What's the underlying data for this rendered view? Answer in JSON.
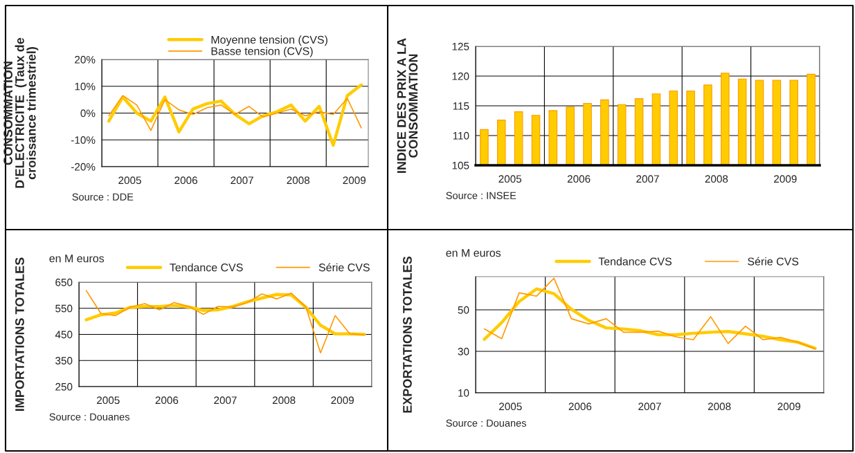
{
  "chart_data": [
    {
      "type": "line",
      "ylabel": "CONSOMMATION\nD'ELECTRICITE  (Taux de\ncroissance trimestriel)",
      "annotations": [
        "Source : DDE"
      ],
      "x": [
        2005.125,
        2005.375,
        2005.625,
        2005.875,
        2006.125,
        2006.375,
        2006.625,
        2006.875,
        2007.125,
        2007.375,
        2007.625,
        2007.875,
        2008.125,
        2008.375,
        2008.625,
        2008.875,
        2009.125,
        2009.375,
        2009.625
      ],
      "series": [
        {
          "name": "Moyenne tension (CVS)",
          "color": "#ffcc00",
          "values": [
            -3,
            6,
            0,
            -3,
            6,
            -7,
            1.5,
            3.5,
            4.5,
            -0.5,
            -4,
            -1,
            0.5,
            3,
            -3,
            2.5,
            -12,
            6.5,
            10.5
          ]
        },
        {
          "name": "Basse tension (CVS)",
          "color": "#ff9900",
          "values": [
            -1,
            6.5,
            3,
            -6.5,
            5,
            1.2,
            -0.5,
            2,
            3,
            -0.5,
            2.5,
            -1.5,
            0,
            1.5,
            -1,
            0.5,
            -0.5,
            5.5,
            -5.5
          ]
        }
      ],
      "xlim": [
        2005,
        2009.75
      ],
      "xticks": [
        {
          "value": 2005,
          "label": null
        },
        {
          "value": 2005.5,
          "label": "2005"
        },
        {
          "value": 2006,
          "label": null
        },
        {
          "value": 2006.5,
          "label": "2006"
        },
        {
          "value": 2007,
          "label": null
        },
        {
          "value": 2007.5,
          "label": "2007"
        },
        {
          "value": 2008,
          "label": null
        },
        {
          "value": 2008.5,
          "label": "2008"
        },
        {
          "value": 2009,
          "label": null
        },
        {
          "value": 2009.5,
          "label": "2009"
        }
      ],
      "ylim": [
        -20,
        20
      ],
      "yticks": [
        {
          "value": -20,
          "label": "-20%"
        },
        {
          "value": -10,
          "label": "-10%"
        },
        {
          "value": 0,
          "label": "0%"
        },
        {
          "value": 10,
          "label": "10%"
        },
        {
          "value": 20,
          "label": "20%"
        }
      ],
      "grid": true,
      "legend": "top"
    },
    {
      "type": "bar",
      "ylabel": "INDICE DES PRIX A LA\nCONSOMMATION",
      "annotations": [
        "Source : INSEE"
      ],
      "x": [
        2005.125,
        2005.375,
        2005.625,
        2005.875,
        2006.125,
        2006.375,
        2006.625,
        2006.875,
        2007.125,
        2007.375,
        2007.625,
        2007.875,
        2008.125,
        2008.375,
        2008.625,
        2008.875,
        2009.125,
        2009.375,
        2009.625,
        2009.875
      ],
      "series": [
        {
          "color": "#ffcc00",
          "values": [
            111,
            112.6,
            114,
            113.4,
            114.2,
            114.8,
            115.4,
            116,
            115.2,
            116.2,
            117,
            117.5,
            117.5,
            118.5,
            120.5,
            119.5,
            119.3,
            119.3,
            119.3,
            120.3
          ]
        }
      ],
      "xlim": [
        2005,
        2010
      ],
      "xticks": [
        {
          "value": 2005,
          "label": null
        },
        {
          "value": 2005.5,
          "label": "2005"
        },
        {
          "value": 2006,
          "label": null
        },
        {
          "value": 2006.5,
          "label": "2006"
        },
        {
          "value": 2007,
          "label": null
        },
        {
          "value": 2007.5,
          "label": "2007"
        },
        {
          "value": 2008,
          "label": null
        },
        {
          "value": 2008.5,
          "label": "2008"
        },
        {
          "value": 2009,
          "label": null
        },
        {
          "value": 2009.5,
          "label": "2009"
        },
        {
          "value": 2010,
          "label": null
        }
      ],
      "ylim": [
        105,
        125
      ],
      "yticks": [
        105,
        110,
        115,
        120,
        125
      ],
      "grid": true
    },
    {
      "type": "line",
      "ylabel": "IMPORTATIONS TOTALES",
      "annotations": [
        "en M euros",
        "Source : Douanes"
      ],
      "x": [
        2005.125,
        2005.375,
        2005.625,
        2005.875,
        2006.125,
        2006.375,
        2006.625,
        2006.875,
        2007.125,
        2007.375,
        2007.625,
        2007.875,
        2008.125,
        2008.375,
        2008.625,
        2008.875,
        2009.125,
        2009.375,
        2009.625,
        2009.875
      ],
      "series": [
        {
          "name": "Tendance CVS",
          "color": "#ffcc00",
          "values": [
            506,
            525,
            532,
            554,
            557,
            557,
            561,
            555,
            542,
            544,
            557,
            575,
            589,
            603,
            601,
            554,
            485,
            452,
            452,
            450
          ]
        },
        {
          "name": "Série CVS",
          "color": "#ff9900",
          "values": [
            618,
            530,
            522,
            554,
            568,
            544,
            572,
            557,
            527,
            557,
            555,
            572,
            605,
            586,
            608,
            555,
            379,
            522,
            452,
            448
          ]
        }
      ],
      "xlim": [
        2005,
        2010
      ],
      "xticks": [
        {
          "value": 2005,
          "label": null
        },
        {
          "value": 2005.5,
          "label": "2005"
        },
        {
          "value": 2006,
          "label": null
        },
        {
          "value": 2006.5,
          "label": "2006"
        },
        {
          "value": 2007,
          "label": null
        },
        {
          "value": 2007.5,
          "label": "2007"
        },
        {
          "value": 2008,
          "label": null
        },
        {
          "value": 2008.5,
          "label": "2008"
        },
        {
          "value": 2009,
          "label": null
        },
        {
          "value": 2009.5,
          "label": "2009"
        },
        {
          "value": 2010,
          "label": null
        }
      ],
      "ylim": [
        250,
        650
      ],
      "yticks": [
        250,
        350,
        450,
        550,
        650
      ],
      "grid": true,
      "legend": "top"
    },
    {
      "type": "line",
      "ylabel": "EXPORTATIONS TOTALES",
      "annotations": [
        "en M euros",
        "Source : Douanes"
      ],
      "x": [
        2005.125,
        2005.375,
        2005.625,
        2005.875,
        2006.125,
        2006.375,
        2006.625,
        2006.875,
        2007.125,
        2007.375,
        2007.625,
        2007.875,
        2008.125,
        2008.375,
        2008.625,
        2008.875,
        2009.125,
        2009.375,
        2009.625,
        2009.875
      ],
      "series": [
        {
          "name": "Tendance CVS",
          "color": "#ffcc00",
          "values": [
            35.8,
            43.9,
            54.0,
            60.1,
            57.8,
            50.3,
            44.9,
            41.3,
            40.8,
            39.9,
            38.0,
            38.0,
            38.7,
            39.2,
            39.6,
            38.4,
            37.3,
            35.6,
            34.4,
            31.5
          ]
        },
        {
          "name": "Série CVS",
          "color": "#ff9900",
          "values": [
            40.8,
            36.1,
            58.2,
            56.6,
            65.2,
            45.7,
            43.2,
            45.7,
            39.2,
            39.2,
            39.7,
            37.0,
            35.6,
            46.7,
            33.8,
            42.1,
            35.6,
            36.7,
            34.4,
            31.2
          ]
        }
      ],
      "xlim": [
        2005,
        2010
      ],
      "xticks": [
        {
          "value": 2005,
          "label": null
        },
        {
          "value": 2005.5,
          "label": "2005"
        },
        {
          "value": 2006,
          "label": null
        },
        {
          "value": 2006.5,
          "label": "2006"
        },
        {
          "value": 2007,
          "label": null
        },
        {
          "value": 2007.5,
          "label": "2007"
        },
        {
          "value": 2008,
          "label": null
        },
        {
          "value": 2008.5,
          "label": "2008"
        },
        {
          "value": 2009,
          "label": null
        },
        {
          "value": 2009.5,
          "label": "2009"
        },
        {
          "value": 2010,
          "label": null
        }
      ],
      "ylim": [
        10,
        66
      ],
      "yticks": [
        10,
        30,
        50
      ],
      "grid": true,
      "legend": "top"
    }
  ]
}
